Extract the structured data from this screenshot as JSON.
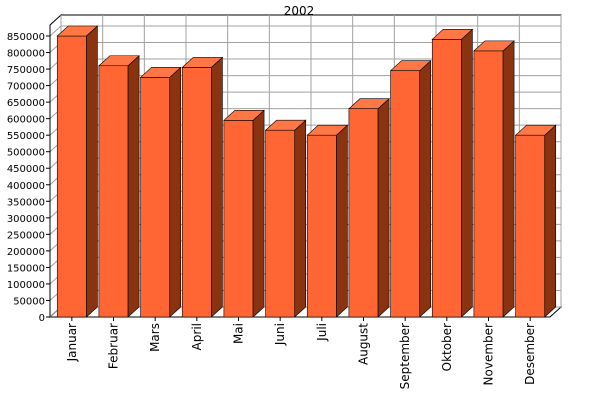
{
  "chart_data": {
    "type": "bar",
    "title": "2002",
    "xlabel": "",
    "ylabel": "",
    "categories": [
      "Januar",
      "Februar",
      "Mars",
      "April",
      "Mai",
      "Juni",
      "Juli",
      "August",
      "September",
      "Oktober",
      "November",
      "Desember"
    ],
    "values": [
      850000,
      760000,
      725000,
      755000,
      595000,
      565000,
      550000,
      630000,
      745000,
      840000,
      805000,
      550000
    ],
    "ylim": [
      0,
      850000
    ],
    "yticks": [
      "0",
      "50000",
      "100000",
      "150000",
      "200000",
      "250000",
      "300000",
      "350000",
      "400000",
      "450000",
      "500000",
      "550000",
      "600000",
      "650000",
      "700000",
      "750000",
      "800000",
      "850000"
    ],
    "grid": true,
    "legend": "none",
    "colors": {
      "bar_front": "#ff6633",
      "bar_top": "#ff7744",
      "bar_side": "#8a3311",
      "grid": "#a0a0a0",
      "wall": "#ffffff"
    }
  }
}
